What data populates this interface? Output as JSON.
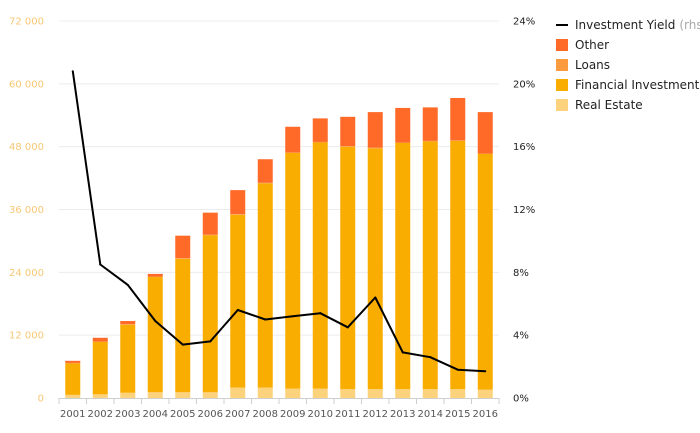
{
  "chart_data": {
    "type": "bar",
    "categories": [
      "2001",
      "2002",
      "2003",
      "2004",
      "2005",
      "2006",
      "2007",
      "2008",
      "2009",
      "2010",
      "2011",
      "2012",
      "2013",
      "2014",
      "2015",
      "2016"
    ],
    "y_left": {
      "ticks": [
        0,
        12000,
        24000,
        36000,
        48000,
        60000,
        72000
      ],
      "tick_labels": [
        "0",
        "12 000",
        "24 000",
        "36 000",
        "48 000",
        "60 000",
        "72 000"
      ],
      "range": [
        0,
        72000
      ]
    },
    "y_right": {
      "ticks": [
        0,
        4,
        8,
        12,
        16,
        20,
        24
      ],
      "tick_labels": [
        "0%",
        "4%",
        "8%",
        "12%",
        "16%",
        "20%",
        "24%"
      ],
      "range": [
        0,
        24
      ]
    },
    "series": [
      {
        "name": "Real Estate",
        "color": "#fdd27d",
        "values": [
          600,
          700,
          1000,
          1100,
          1100,
          1100,
          2000,
          2000,
          1800,
          1800,
          1700,
          1700,
          1700,
          1700,
          1700,
          1600
        ]
      },
      {
        "name": "Financial Investments",
        "color": "#f9ad00",
        "values": [
          6000,
          10000,
          13000,
          22000,
          25500,
          30000,
          33000,
          39000,
          45000,
          47000,
          46300,
          46000,
          47000,
          47300,
          47400,
          45000
        ]
      },
      {
        "name": "Loans",
        "color": "#fb9a3e",
        "values": [
          100,
          100,
          100,
          100,
          100,
          100,
          100,
          100,
          100,
          100,
          100,
          100,
          100,
          100,
          100,
          100
        ]
      },
      {
        "name": "Other",
        "color": "#ff6a29",
        "values": [
          400,
          700,
          600,
          500,
          4300,
          4200,
          4600,
          4500,
          4900,
          4500,
          5600,
          6800,
          6600,
          6400,
          8100,
          7900
        ]
      }
    ],
    "line_series": {
      "name": "Investment Yield",
      "name_suffix": "(rhs)",
      "color": "#000000",
      "axis": "right",
      "values": [
        20.8,
        8.5,
        7.2,
        4.9,
        3.4,
        3.6,
        5.6,
        5.0,
        5.2,
        5.4,
        4.5,
        6.4,
        2.9,
        2.6,
        1.8,
        1.7
      ]
    },
    "legend_position": "right",
    "grid": true
  }
}
